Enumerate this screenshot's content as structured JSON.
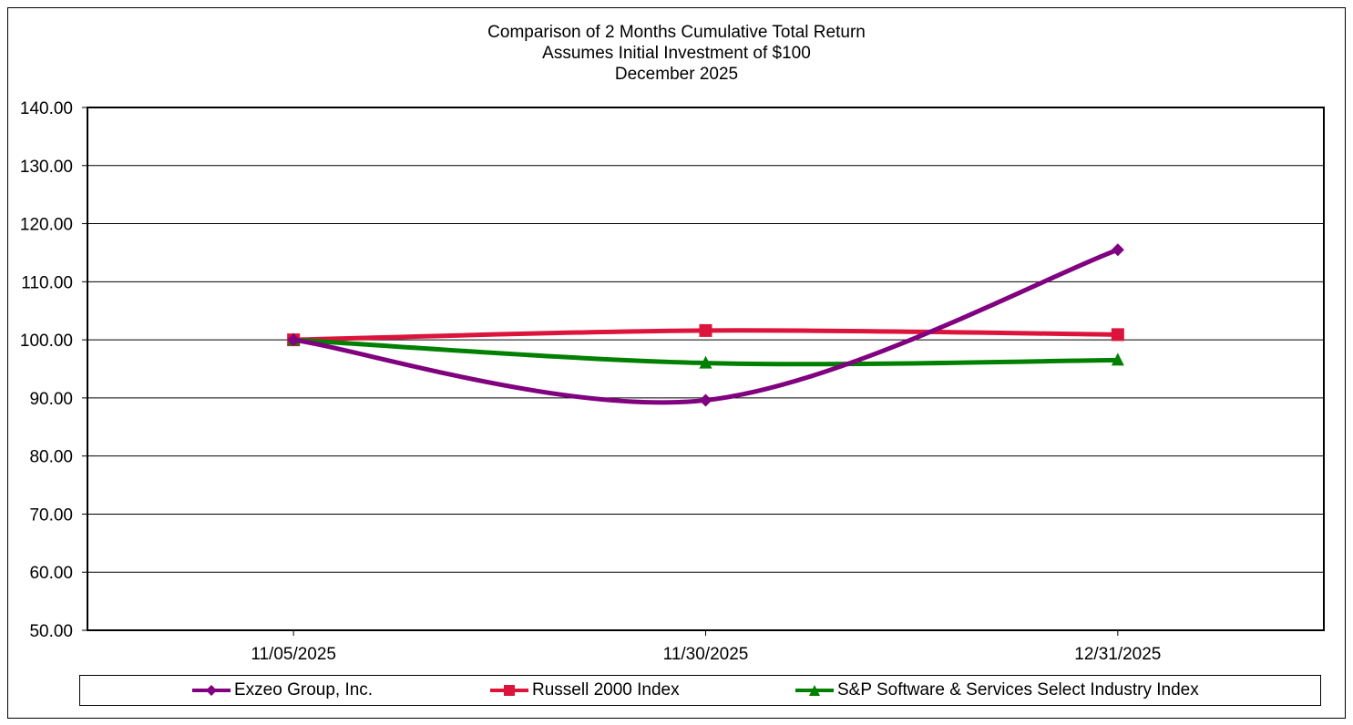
{
  "chart_data": {
    "type": "line",
    "title_lines": [
      "Comparison of 2 Months Cumulative Total Return",
      "Assumes Initial Investment of $100",
      "December 2025"
    ],
    "categories": [
      "11/05/2025",
      "11/30/2025",
      "12/31/2025"
    ],
    "ylim": [
      50,
      140
    ],
    "yticks": [
      "50.00",
      "60.00",
      "70.00",
      "80.00",
      "90.00",
      "100.00",
      "110.00",
      "120.00",
      "130.00",
      "140.00"
    ],
    "grid": true,
    "legend_position": "bottom",
    "series": [
      {
        "name": "Exzeo Group, Inc.",
        "values": [
          100.0,
          89.6,
          115.5
        ],
        "color": "#800080",
        "marker": "diamond"
      },
      {
        "name": "Russell 2000 Index",
        "values": [
          100.0,
          101.6,
          100.9
        ],
        "color": "#dc143c",
        "marker": "square"
      },
      {
        "name": "S&P Software & Services Select Industry Index",
        "values": [
          100.0,
          96.0,
          96.5
        ],
        "color": "#008000",
        "marker": "triangle"
      }
    ]
  }
}
